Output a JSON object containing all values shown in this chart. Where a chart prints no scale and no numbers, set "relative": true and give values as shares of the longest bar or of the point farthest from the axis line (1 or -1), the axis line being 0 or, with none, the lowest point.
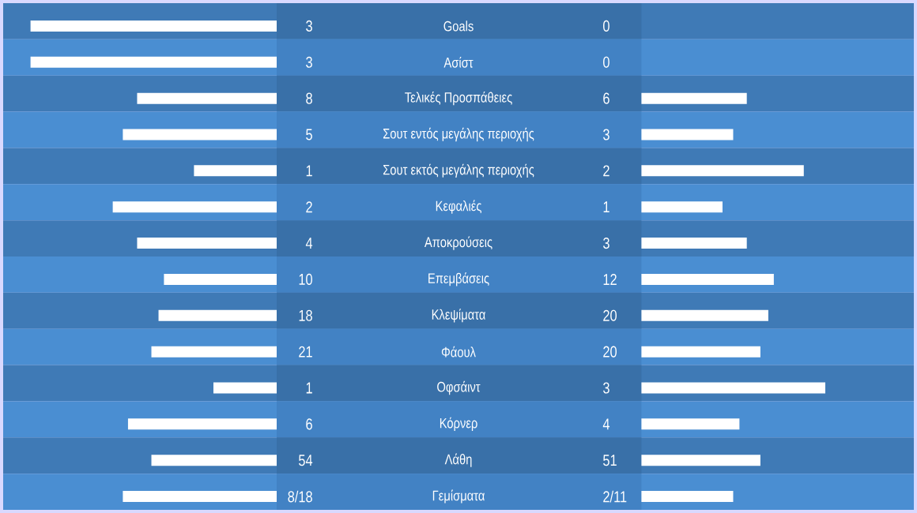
{
  "chart_data": [
    {
      "type": "bar",
      "orientation": "horizontal",
      "relative": true,
      "categories": [
        "Goals",
        "Ασίστ",
        "Τελικές Προσπάθειες",
        "Σουτ εντός μεγάλης περιοχής",
        "Σουτ εκτός μεγάλης περιοχής",
        "Κεφαλιές",
        "Αποκρούσεις",
        "Επεμβάσεις",
        "Κλεψίματα",
        "Φάουλ",
        "Οφσάιντ",
        "Κόρνερ",
        "Λάθη",
        "Γεμίσματα"
      ],
      "series": [
        {
          "color": "#ffffff",
          "values": [
            -1,
            -1,
            -0.567,
            -0.625,
            -0.336,
            -0.666,
            -0.567,
            -0.458,
            -0.48,
            -0.509,
            -0.257,
            -0.604,
            -0.509,
            -0.625
          ]
        }
      ],
      "annotations": [
        "3",
        "3",
        "8",
        "5",
        "1",
        "2",
        "4",
        "10",
        "18",
        "21",
        "1",
        "6",
        "54",
        "8/18"
      ]
    },
    {
      "type": "bar",
      "orientation": "horizontal",
      "relative": true,
      "categories": [
        null,
        null,
        null,
        null,
        null,
        null,
        null,
        null,
        null,
        null,
        null,
        null,
        null,
        null
      ],
      "series": [
        {
          "color": "#ffffff",
          "values": [
            0,
            0,
            0.573,
            0.499,
            0.883,
            0.441,
            0.573,
            0.72,
            0.69,
            0.647,
            1,
            0.533,
            0.647,
            0.499
          ]
        }
      ],
      "annotations": [
        "0",
        "0",
        "6",
        "3",
        "2",
        "1",
        "3",
        "12",
        "20",
        "20",
        "3",
        "4",
        "51",
        "2/11"
      ]
    }
  ]
}
